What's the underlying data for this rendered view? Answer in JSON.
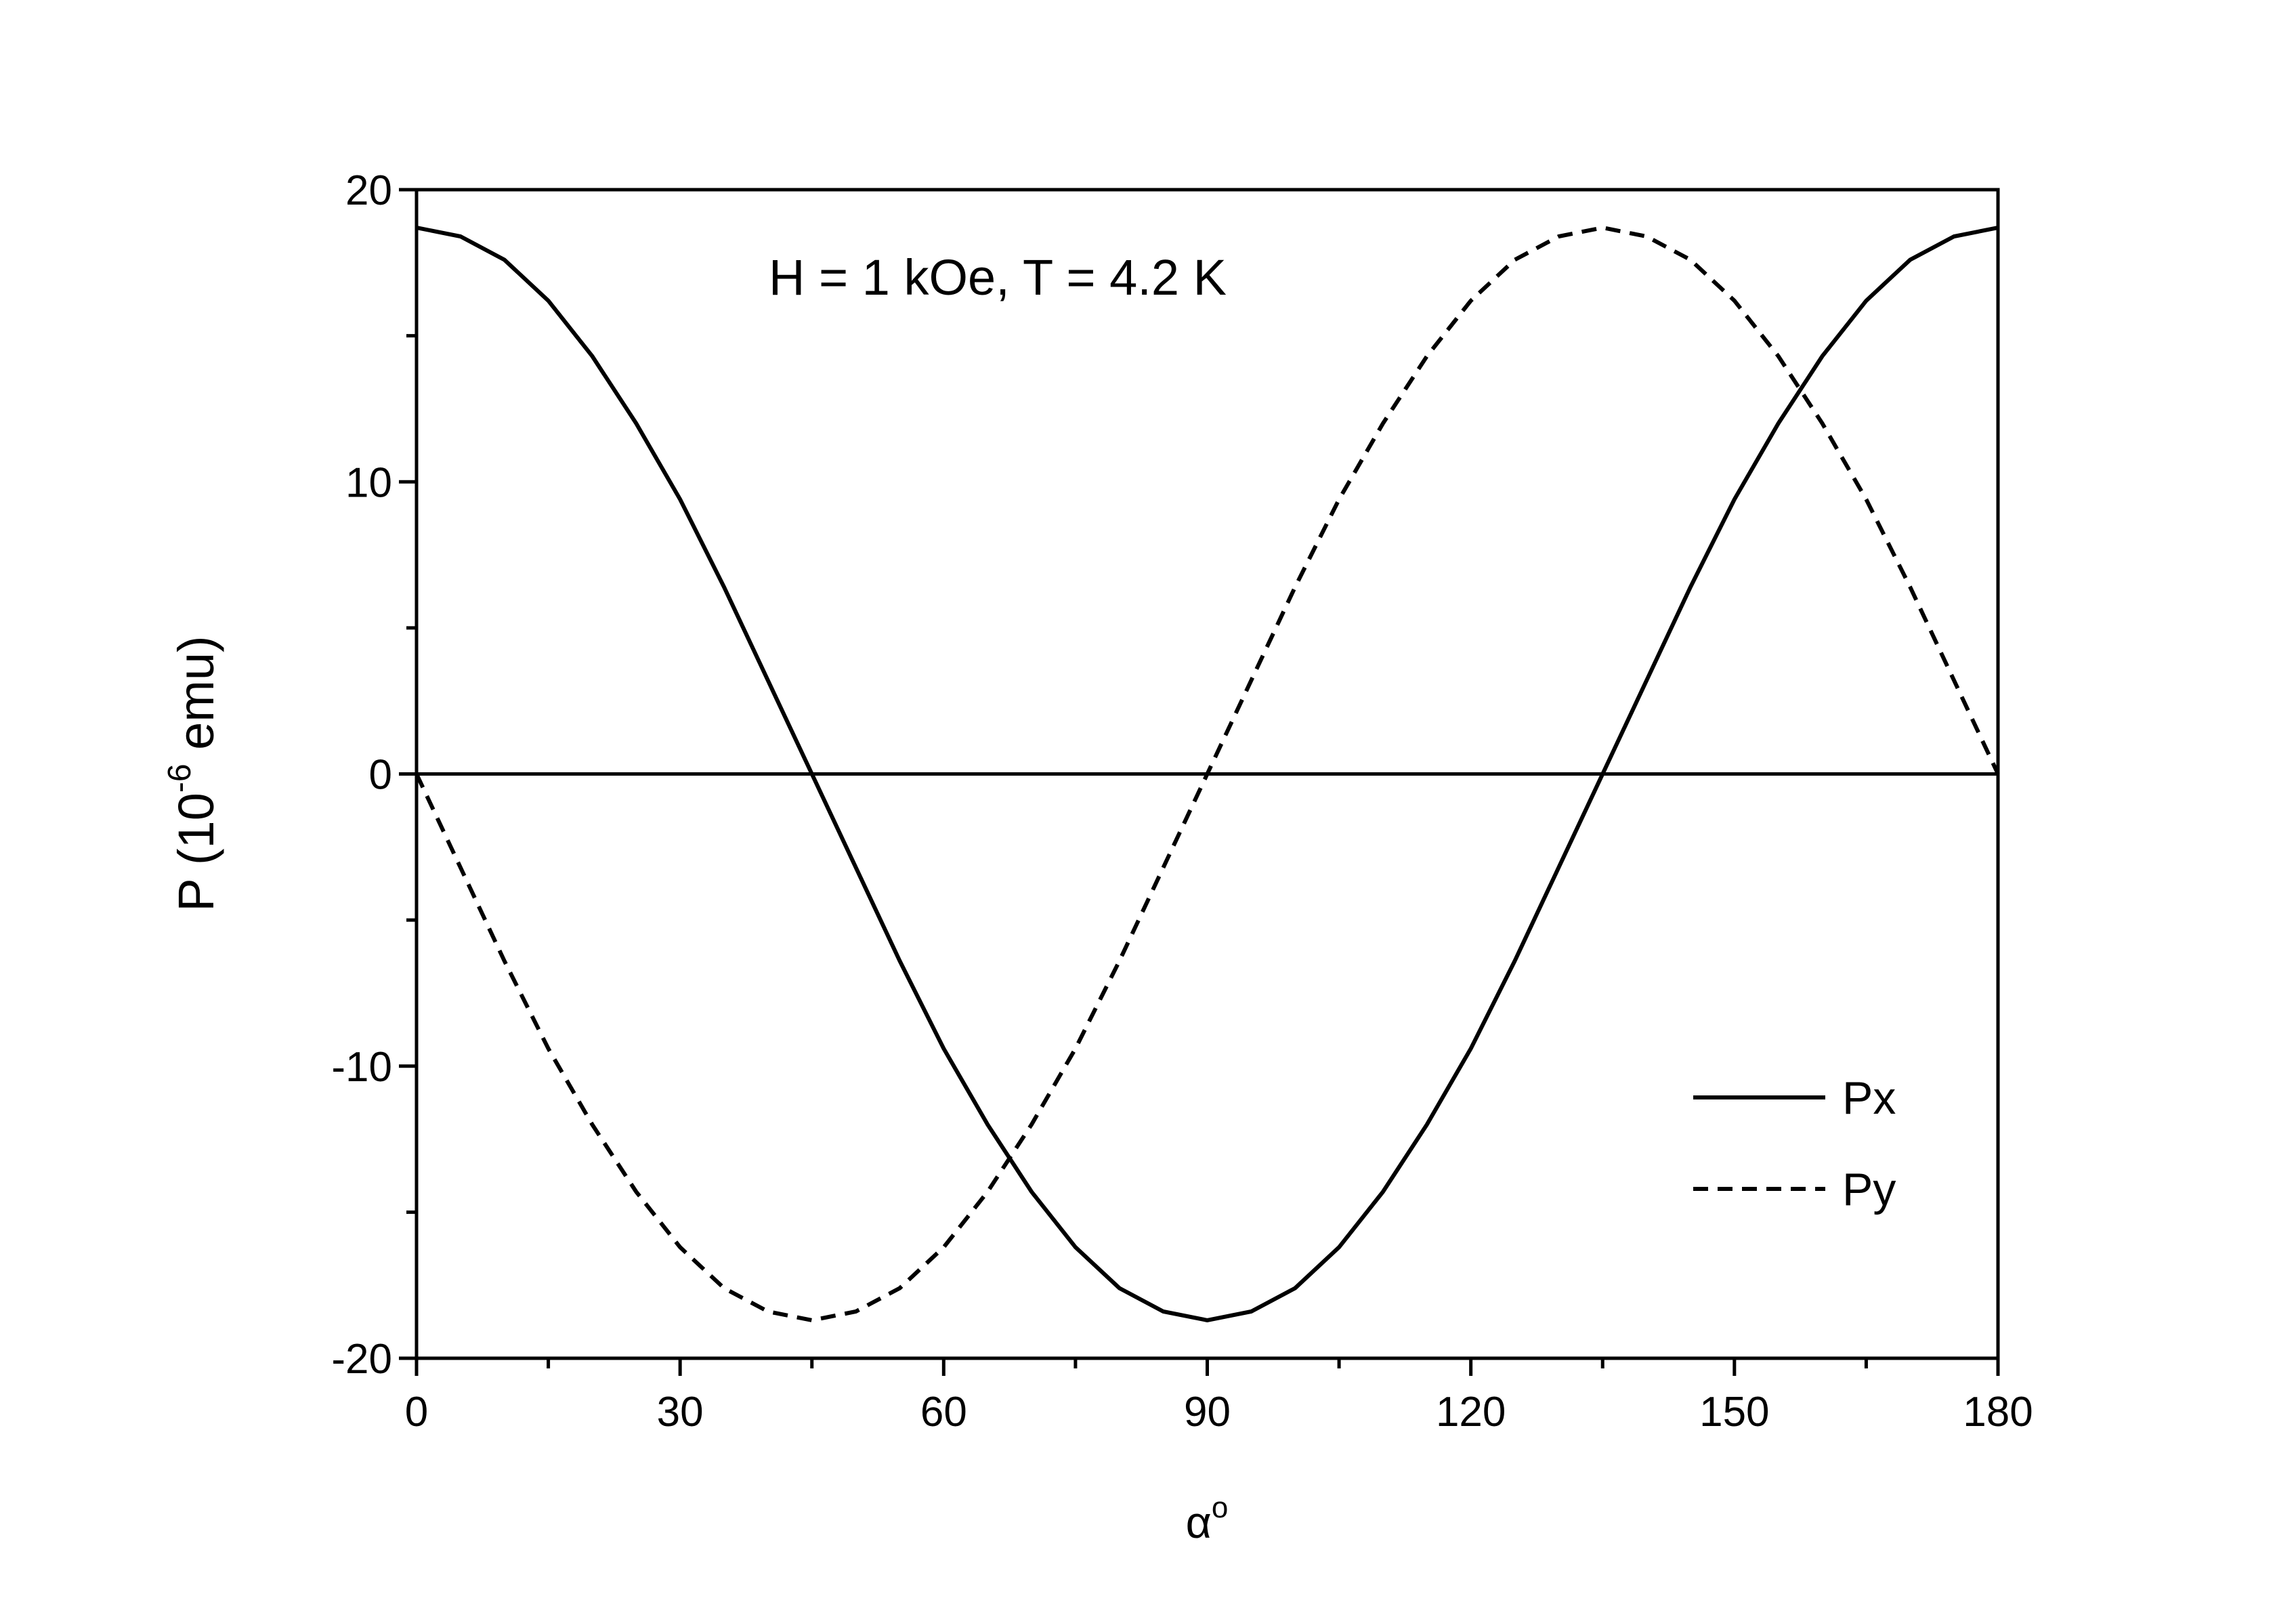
{
  "chart_data": {
    "type": "line",
    "annotation": "H = 1 kOe, T = 4.2 K",
    "x_label": {
      "text": "α",
      "sup": "o"
    },
    "y_label": {
      "text": "P (10",
      "sup": "-6",
      "after": " emu)"
    },
    "x": [
      0,
      5,
      10,
      15,
      20,
      25,
      30,
      35,
      40,
      45,
      50,
      55,
      60,
      65,
      70,
      75,
      80,
      85,
      90,
      95,
      100,
      105,
      110,
      115,
      120,
      125,
      130,
      135,
      140,
      145,
      150,
      155,
      160,
      165,
      170,
      175,
      180
    ],
    "series": [
      {
        "name": "Px",
        "color": "#000000",
        "dash": "solid",
        "values": [
          18.7,
          18.4,
          17.6,
          16.2,
          14.3,
          12.0,
          9.4,
          6.4,
          3.2,
          0,
          -3.2,
          -6.4,
          -9.4,
          -12.0,
          -14.3,
          -16.2,
          -17.6,
          -18.4,
          -18.7,
          -18.4,
          -17.6,
          -16.2,
          -14.3,
          -12.0,
          -9.4,
          -6.4,
          -3.2,
          0,
          3.2,
          6.4,
          9.4,
          12.0,
          14.3,
          16.2,
          17.6,
          18.4,
          18.7
        ]
      },
      {
        "name": "Py",
        "color": "#000000",
        "dash": "dashed",
        "values": [
          0,
          -3.2,
          -6.4,
          -9.4,
          -12.0,
          -14.3,
          -16.2,
          -17.6,
          -18.4,
          -18.7,
          -18.4,
          -17.6,
          -16.2,
          -14.3,
          -12.0,
          -9.4,
          -6.4,
          -3.2,
          0,
          3.2,
          6.4,
          9.4,
          12.0,
          14.3,
          16.2,
          17.6,
          18.4,
          18.7,
          18.4,
          17.6,
          16.2,
          14.3,
          12.0,
          9.4,
          6.4,
          3.2,
          0
        ]
      }
    ],
    "xlim": [
      0,
      180
    ],
    "xticks": [
      0,
      30,
      60,
      90,
      120,
      150,
      180
    ],
    "xticks_minor": [
      15,
      45,
      75,
      105,
      135,
      165
    ],
    "ylim": [
      -20,
      20
    ],
    "yticks": [
      -20,
      -10,
      0,
      10,
      20
    ],
    "yticks_minor": [
      -15,
      -5,
      5,
      15
    ],
    "hlines": [
      0
    ],
    "legend": "lower right"
  }
}
